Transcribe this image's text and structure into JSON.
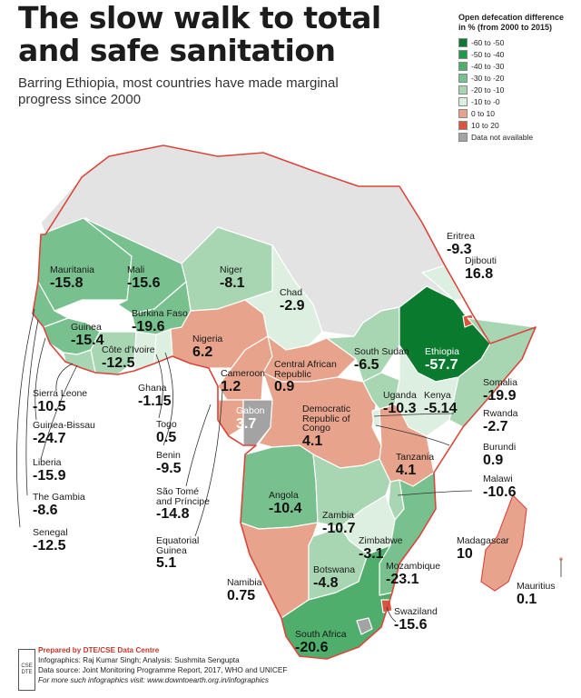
{
  "header": {
    "title_line1": "The slow walk to total",
    "title_line2": "and safe sanitation",
    "subtitle": "Barring Ethiopia, most countries have made marginal progress since 2000"
  },
  "legend": {
    "title_line1": "Open defecation difference",
    "title_line2": "in % (from 2000 to 2015)",
    "items": [
      {
        "label": "-60 to -50",
        "color": "#0a7a2f"
      },
      {
        "label": "-50 to -40",
        "color": "#1f9a48"
      },
      {
        "label": "-40 to -30",
        "color": "#4fae6b"
      },
      {
        "label": "-30 to -20",
        "color": "#79c08f"
      },
      {
        "label": "-20 to -10",
        "color": "#a9d6b2"
      },
      {
        "label": "-10 to -0",
        "color": "#dcefe0"
      },
      {
        "label": "0 to 10",
        "color": "#e7a38c"
      },
      {
        "label": "10 to 20",
        "color": "#d9553d"
      },
      {
        "label": "Data not available",
        "color": "#a3a3a3"
      }
    ]
  },
  "colors": {
    "sea": "#ffffff",
    "no_data_land": "#e3e3e3",
    "coast": "#d8463c",
    "border": "#ffffff"
  },
  "countries": [
    {
      "id": "mauritania",
      "name": "Mauritania",
      "value": "-15.8"
    },
    {
      "id": "mali",
      "name": "Mali",
      "value": "-15.6"
    },
    {
      "id": "niger",
      "name": "Niger",
      "value": "-8.1"
    },
    {
      "id": "chad",
      "name": "Chad",
      "value": "-2.9"
    },
    {
      "id": "burkina-faso",
      "name": "Burkina Faso",
      "value": "-19.6"
    },
    {
      "id": "guinea",
      "name": "Guinea",
      "value": "-15.4"
    },
    {
      "id": "cote-divoire",
      "name": "Côte d'Ivoire",
      "value": "-12.5"
    },
    {
      "id": "nigeria",
      "name": "Nigeria",
      "value": "6.2"
    },
    {
      "id": "cameroon",
      "name": "Cameroon",
      "value": "1.2"
    },
    {
      "id": "central-african-republic",
      "name": "Central African Republic",
      "value": "0.9"
    },
    {
      "id": "gabon",
      "name": "Gabon",
      "value": "3.7"
    },
    {
      "id": "drc",
      "name": "Democratic Republic of Congo",
      "value": "4.1"
    },
    {
      "id": "south-sudan",
      "name": "South Sudan",
      "value": "-6.5"
    },
    {
      "id": "ethiopia",
      "name": "Ethiopia",
      "value": "-57.7"
    },
    {
      "id": "eritrea",
      "name": "Eritrea",
      "value": "-9.3"
    },
    {
      "id": "djibouti",
      "name": "Djibouti",
      "value": "16.8"
    },
    {
      "id": "somalia",
      "name": "Somalia",
      "value": "-19.9"
    },
    {
      "id": "uganda",
      "name": "Uganda",
      "value": "-10.3"
    },
    {
      "id": "kenya",
      "name": "Kenya",
      "value": "-5.14"
    },
    {
      "id": "rwanda",
      "name": "Rwanda",
      "value": "-2.7"
    },
    {
      "id": "burundi",
      "name": "Burundi",
      "value": "0.9"
    },
    {
      "id": "tanzania",
      "name": "Tanzania",
      "value": "4.1"
    },
    {
      "id": "malawi",
      "name": "Malawi",
      "value": "-10.6"
    },
    {
      "id": "angola",
      "name": "Angola",
      "value": "-10.4"
    },
    {
      "id": "zambia",
      "name": "Zambia",
      "value": "-10.7"
    },
    {
      "id": "zimbabwe",
      "name": "Zimbabwe",
      "value": "-3.1"
    },
    {
      "id": "madagascar",
      "name": "Madagascar",
      "value": "10"
    },
    {
      "id": "botswana",
      "name": "Botswana",
      "value": "-4.8"
    },
    {
      "id": "mozambique",
      "name": "Mozambique",
      "value": "-23.1"
    },
    {
      "id": "namibia",
      "name": "Namibia",
      "value": "0.75"
    },
    {
      "id": "mauritius",
      "name": "Mauritius",
      "value": "0.1"
    },
    {
      "id": "swaziland",
      "name": "Swaziland",
      "value": "-15.6"
    },
    {
      "id": "south-africa",
      "name": "South Africa",
      "value": "-20.6"
    },
    {
      "id": "sierra-leone",
      "name": "Sierra Leone",
      "value": "-10.5"
    },
    {
      "id": "ghana",
      "name": "Ghana",
      "value": "-1.15"
    },
    {
      "id": "guinea-bissau",
      "name": "Guinea-Bissau",
      "value": "-24.7"
    },
    {
      "id": "togo",
      "name": "Togo",
      "value": "0.5"
    },
    {
      "id": "liberia",
      "name": "Liberia",
      "value": "-15.9"
    },
    {
      "id": "benin",
      "name": "Benin",
      "value": "-9.5"
    },
    {
      "id": "the-gambia",
      "name": "The Gambia",
      "value": "-8.6"
    },
    {
      "id": "sao-tome",
      "name": "São Tomé and Príncipe",
      "value": "-14.8"
    },
    {
      "id": "senegal",
      "name": "Senegal",
      "value": "-12.5"
    },
    {
      "id": "equatorial-guinea",
      "name": "Equatorial Guinea",
      "value": "5.1"
    }
  ],
  "credits": {
    "logo": "CSE DTE",
    "prepared": "Prepared by DTE/CSE Data Centre",
    "infographics": "Infographics: Raj Kumar Singh; Analysis: Sushmita Sengupta",
    "source": "Data source: Joint Monitoring Programme Report, 2017, WHO and UNICEF",
    "more": "For more such infographics visit: www.downtoearth.org.in/infographics"
  }
}
